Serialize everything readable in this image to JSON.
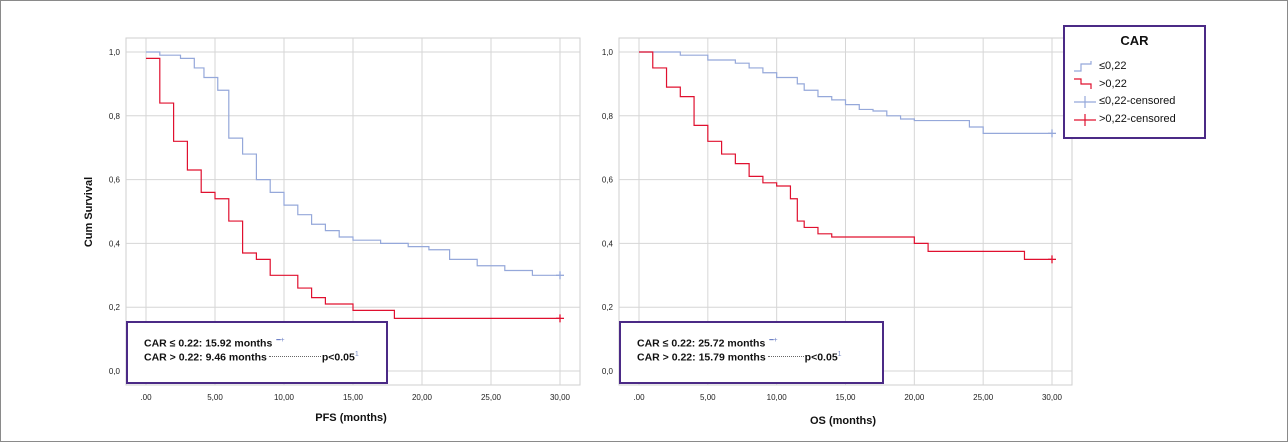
{
  "colors": {
    "low": "#95A8DA",
    "high": "#E0102F",
    "box": "#4B2A86",
    "grid": "#D6D6D6"
  },
  "legend": {
    "title": "CAR",
    "items": [
      {
        "label": "≤0,22",
        "kind": "line",
        "color_key": "low"
      },
      {
        "label": ">0,22",
        "kind": "line",
        "color_key": "high"
      },
      {
        "label": "≤0,22-censored",
        "kind": "cross",
        "color_key": "low"
      },
      {
        "label": ">0,22-censored",
        "kind": "cross",
        "color_key": "high"
      }
    ]
  },
  "y_axis_title": "Cum Survival",
  "annotations": {
    "pfs": {
      "line1": "CAR ≤ 0.22: 15.92 months",
      "line2": "CAR > 0.22: 9.46 months",
      "p": "p<0.05"
    },
    "os": {
      "line1": "CAR ≤ 0.22: 25.72 months",
      "line2": "CAR > 0.22: 15.79 months",
      "p": "p<0.05"
    }
  },
  "chart_data": [
    {
      "type": "line",
      "subtype": "kaplan-meier",
      "xlabel": "PFS (months)",
      "ylabel": "Cum Survival",
      "xlim": [
        0,
        30
      ],
      "ylim": [
        0,
        1
      ],
      "x_ticks": [
        ".00",
        "5,00",
        "10,00",
        "15,00",
        "20,00",
        "25,00",
        "30,00"
      ],
      "y_ticks": [
        "0,0",
        "0,2",
        "0,4",
        "0,6",
        "0,8",
        "1,0"
      ],
      "grid": true,
      "series": [
        {
          "name": "≤0,22",
          "color_key": "low",
          "steps": [
            [
              0,
              1.0
            ],
            [
              1,
              0.99
            ],
            [
              2.5,
              0.98
            ],
            [
              3.5,
              0.95
            ],
            [
              4.2,
              0.92
            ],
            [
              5.2,
              0.88
            ],
            [
              6,
              0.73
            ],
            [
              7,
              0.68
            ],
            [
              8,
              0.6
            ],
            [
              9,
              0.56
            ],
            [
              10,
              0.52
            ],
            [
              11,
              0.49
            ],
            [
              12,
              0.46
            ],
            [
              13,
              0.44
            ],
            [
              14,
              0.42
            ],
            [
              15,
              0.41
            ],
            [
              17,
              0.4
            ],
            [
              19,
              0.39
            ],
            [
              20.5,
              0.38
            ],
            [
              22,
              0.35
            ],
            [
              24,
              0.33
            ],
            [
              26,
              0.315
            ],
            [
              28,
              0.3
            ],
            [
              30,
              0.3
            ]
          ],
          "censored": [
            [
              30,
              0.3
            ]
          ]
        },
        {
          "name": ">0,22",
          "color_key": "high",
          "steps": [
            [
              0,
              0.98
            ],
            [
              1,
              0.84
            ],
            [
              2,
              0.72
            ],
            [
              3,
              0.63
            ],
            [
              4,
              0.56
            ],
            [
              5,
              0.54
            ],
            [
              6,
              0.47
            ],
            [
              7,
              0.37
            ],
            [
              8,
              0.35
            ],
            [
              9,
              0.3
            ],
            [
              11,
              0.26
            ],
            [
              12,
              0.23
            ],
            [
              13,
              0.21
            ],
            [
              15,
              0.19
            ],
            [
              18,
              0.165
            ],
            [
              30,
              0.165
            ]
          ],
          "censored": [
            [
              30,
              0.165
            ]
          ]
        }
      ]
    },
    {
      "type": "line",
      "subtype": "kaplan-meier",
      "xlabel": "OS (months)",
      "ylabel": "",
      "xlim": [
        0,
        30
      ],
      "ylim": [
        0,
        1
      ],
      "x_ticks": [
        ".00",
        "5,00",
        "10,00",
        "15,00",
        "20,00",
        "25,00",
        "30,00"
      ],
      "y_ticks": [
        "0,0",
        "0,2",
        "0,4",
        "0,6",
        "0,8",
        "1,0"
      ],
      "grid": true,
      "series": [
        {
          "name": "≤0,22",
          "color_key": "low",
          "steps": [
            [
              0,
              1.0
            ],
            [
              3,
              0.99
            ],
            [
              5,
              0.975
            ],
            [
              7,
              0.965
            ],
            [
              8,
              0.95
            ],
            [
              9,
              0.935
            ],
            [
              10,
              0.92
            ],
            [
              11.5,
              0.9
            ],
            [
              12,
              0.88
            ],
            [
              13,
              0.86
            ],
            [
              14,
              0.85
            ],
            [
              15,
              0.835
            ],
            [
              16,
              0.82
            ],
            [
              17,
              0.815
            ],
            [
              18,
              0.8
            ],
            [
              19,
              0.79
            ],
            [
              20,
              0.785
            ],
            [
              24,
              0.765
            ],
            [
              25,
              0.745
            ],
            [
              30,
              0.745
            ]
          ],
          "censored": [
            [
              30,
              0.745
            ]
          ]
        },
        {
          "name": ">0,22",
          "color_key": "high",
          "steps": [
            [
              0,
              1.0
            ],
            [
              1,
              0.95
            ],
            [
              2,
              0.89
            ],
            [
              3,
              0.86
            ],
            [
              4,
              0.77
            ],
            [
              5,
              0.72
            ],
            [
              6,
              0.68
            ],
            [
              7,
              0.65
            ],
            [
              8,
              0.61
            ],
            [
              9,
              0.59
            ],
            [
              10,
              0.58
            ],
            [
              11,
              0.54
            ],
            [
              11.5,
              0.47
            ],
            [
              12,
              0.45
            ],
            [
              13,
              0.43
            ],
            [
              14,
              0.42
            ],
            [
              20,
              0.4
            ],
            [
              21,
              0.375
            ],
            [
              28,
              0.35
            ],
            [
              30,
              0.35
            ]
          ],
          "censored": [
            [
              30,
              0.35
            ]
          ]
        }
      ]
    }
  ]
}
